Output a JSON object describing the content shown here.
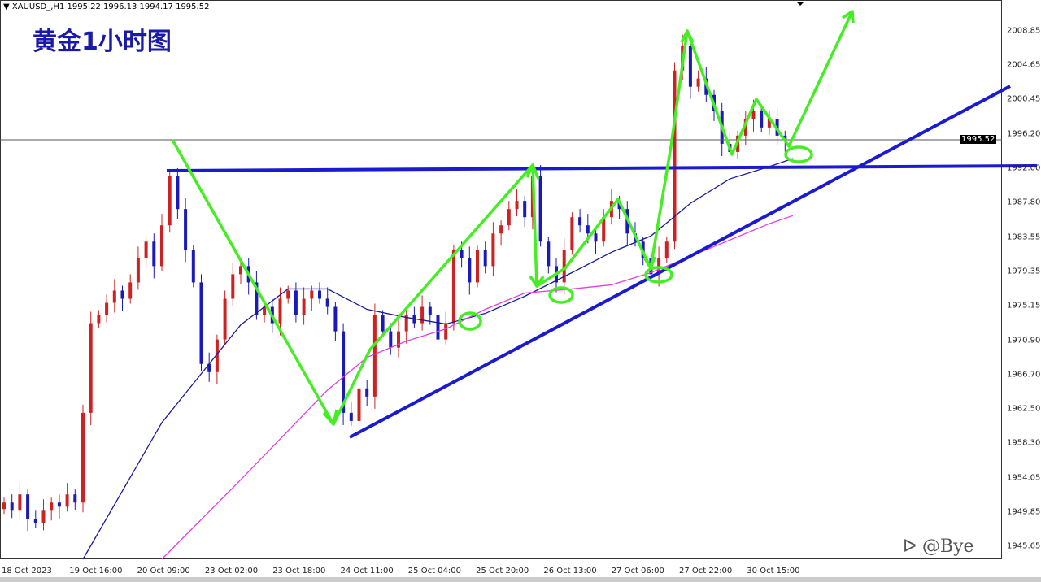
{
  "header": {
    "symbol_line": "XAUUSD_,H1  1995.22 1996.13 1994.17 1995.52"
  },
  "annotation_title": "黄金1小时图",
  "watermark": "@Bye",
  "current_price_label": "1995.52",
  "colors": {
    "bull": "#cc2222",
    "bear": "#1a1ab8",
    "ma_fast": "#1a1a9a",
    "ma_slow": "#e040e0",
    "drawing_lines": "#1a1ad0",
    "drawing_arrows": "#44ee22"
  },
  "chart_data": {
    "type": "candlestick",
    "symbol": "XAUUSD_",
    "timeframe": "H1",
    "ylim": [
      1945.65,
      2012.5
    ],
    "y_ticks": [
      "2008.85",
      "2004.65",
      "2000.45",
      "1996.20",
      "1992.00",
      "1987.80",
      "1983.55",
      "1979.35",
      "1975.15",
      "1970.90",
      "1966.70",
      "1962.50",
      "1958.30",
      "1954.05",
      "1949.85",
      "1945.65"
    ],
    "x_ticks": [
      "18 Oct 2023",
      "19 Oct 16:00",
      "20 Oct 09:00",
      "23 Oct 02:00",
      "23 Oct 18:00",
      "24 Oct 11:00",
      "25 Oct 04:00",
      "25 Oct 20:00",
      "26 Oct 13:00",
      "27 Oct 06:00",
      "27 Oct 22:00",
      "30 Oct 15:00"
    ],
    "closes": [
      1951,
      1950,
      1952,
      1949,
      1948.5,
      1950,
      1951,
      1950.5,
      1952,
      1951,
      1962,
      1973,
      1974,
      1975.5,
      1977,
      1976,
      1978,
      1981,
      1983,
      1980,
      1985,
      1991,
      1987,
      1982,
      1978,
      1968,
      1967,
      1971,
      1976,
      1979,
      1980,
      1978,
      1974,
      1975,
      1973,
      1976,
      1977,
      1974,
      1976,
      1977,
      1976,
      1975,
      1972,
      1962,
      1961,
      1965,
      1964,
      1974,
      1972,
      1970,
      1972,
      1974,
      1973,
      1975,
      1974,
      1971,
      1973,
      1982,
      1981,
      1978,
      1982,
      1980,
      1984,
      1985,
      1987,
      1988,
      1986,
      1991,
      1983,
      1980,
      1978,
      1982,
      1986,
      1985,
      1984,
      1983,
      1986,
      1988,
      1987,
      1984,
      1983,
      1981,
      1979,
      1981,
      1983,
      2004,
      2007,
      2002,
      2003,
      2001,
      1999,
      1995,
      1994,
      1996,
      1998,
      1999,
      1997,
      1998,
      1996,
      1995.52
    ],
    "ma_fast": [
      [
        10,
        1944
      ],
      [
        20,
        1960.8
      ],
      [
        25,
        1966.8
      ],
      [
        30,
        1972.8
      ],
      [
        36,
        1977.2
      ],
      [
        41,
        1977.2
      ],
      [
        46,
        1974.7
      ],
      [
        51,
        1973.7
      ],
      [
        56,
        1972.9
      ],
      [
        61,
        1974.2
      ],
      [
        66,
        1976.3
      ],
      [
        72,
        1979.2
      ],
      [
        77,
        1981.7
      ],
      [
        82,
        1983.7
      ],
      [
        87,
        1987.7
      ],
      [
        92,
        1990.7
      ],
      [
        97,
        1992.2
      ],
      [
        100,
        1993.2
      ]
    ],
    "ma_slow": [
      [
        20,
        1944
      ],
      [
        30,
        1953.8
      ],
      [
        41,
        1964.8
      ],
      [
        46,
        1968.8
      ],
      [
        51,
        1970.8
      ],
      [
        56,
        1972.3
      ],
      [
        61,
        1974.7
      ],
      [
        66,
        1976.7
      ],
      [
        72,
        1977.2
      ],
      [
        77,
        1977.7
      ],
      [
        82,
        1979.2
      ],
      [
        87,
        1981.2
      ],
      [
        92,
        1983.2
      ],
      [
        97,
        1985.2
      ],
      [
        100,
        1986.2
      ]
    ],
    "current_price": 1995.52
  }
}
